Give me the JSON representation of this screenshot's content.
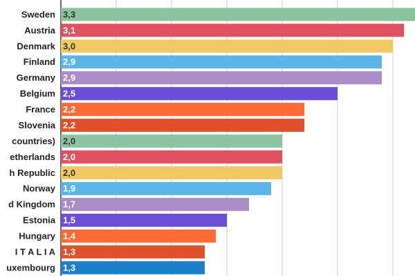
{
  "chart_data": {
    "type": "hbar",
    "categories": [
      "Sweden",
      "Austria",
      "Denmark",
      "Finland",
      "Germany",
      "Belgium",
      "France",
      "Slovenia",
      "countries)",
      "etherlands",
      "h Republic",
      "Norway",
      "d Kingdom",
      "Estonia",
      "Hungary",
      "I T A L I A",
      "uxembourg"
    ],
    "values": [
      3.3,
      3.1,
      3.0,
      2.9,
      2.9,
      2.5,
      2.2,
      2.2,
      2.0,
      2.0,
      2.0,
      1.9,
      1.7,
      1.5,
      1.4,
      1.3,
      1.3
    ],
    "value_labels": [
      "3,3",
      "3,1",
      "3,0",
      "2,9",
      "2,9",
      "2,5",
      "2,2",
      "2,2",
      "2,0",
      "2,0",
      "2,0",
      "1,9",
      "1,7",
      "1,5",
      "1,4",
      "1,3",
      "1,3"
    ],
    "colors": [
      "#8cc4a2",
      "#e0525f",
      "#f1c964",
      "#5cb5e6",
      "#a98dc6",
      "#6a4ed8",
      "#ff6a35",
      "#e0502a",
      "#8cc4a2",
      "#e0525f",
      "#f1c964",
      "#5cb5e6",
      "#a98dc6",
      "#6a4ed8",
      "#ff6a35",
      "#e0502a",
      "#1a80c8"
    ],
    "xlim": [
      0,
      3.2
    ],
    "xticks": [
      0,
      0.5,
      1,
      1.5,
      2,
      2.5,
      3
    ],
    "grid": true
  }
}
